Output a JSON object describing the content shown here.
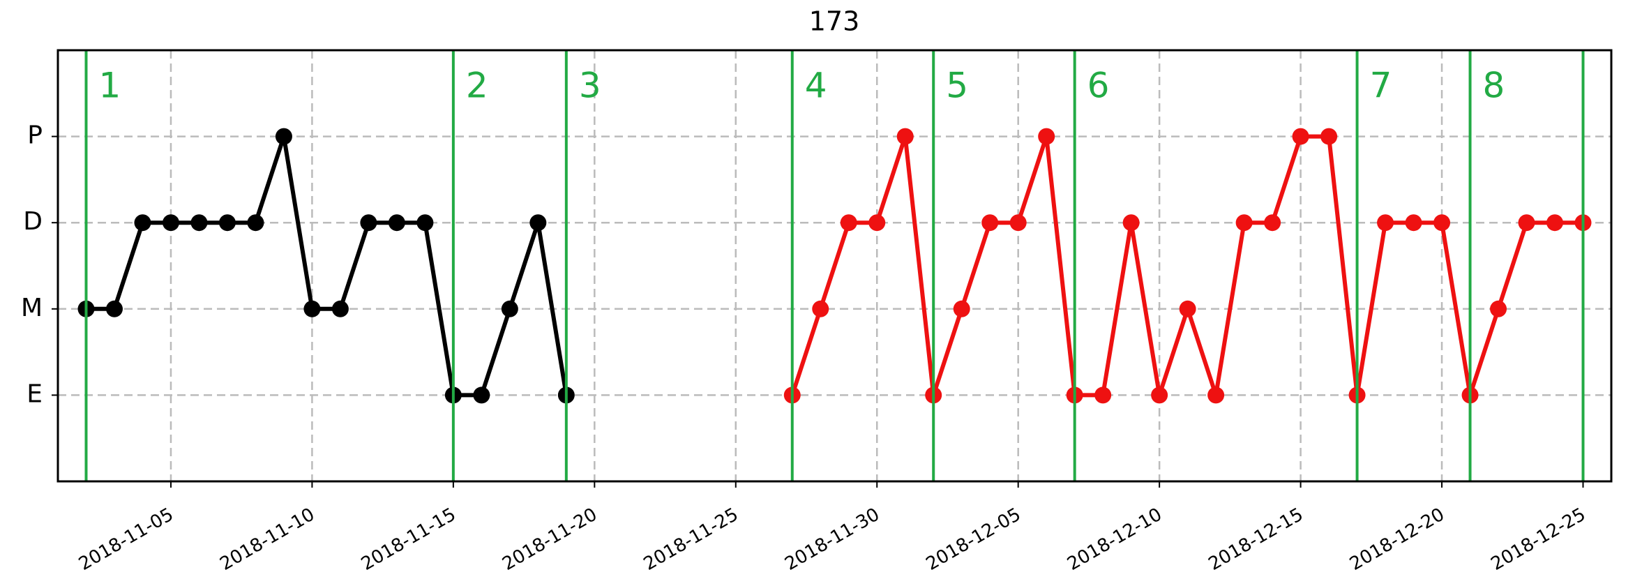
{
  "chart_data": {
    "type": "line",
    "title": "173",
    "xlim": [
      "2018-11-01",
      "2018-12-26"
    ],
    "xticks": [
      "2018-11-05",
      "2018-11-10",
      "2018-11-15",
      "2018-11-20",
      "2018-11-25",
      "2018-11-30",
      "2018-12-05",
      "2018-12-10",
      "2018-12-15",
      "2018-12-20",
      "2018-12-25"
    ],
    "ylim": [
      -1,
      4
    ],
    "yticks": [
      {
        "value": 0,
        "label": "E"
      },
      {
        "value": 1,
        "label": "M"
      },
      {
        "value": 2,
        "label": "D"
      },
      {
        "value": 3,
        "label": "P"
      }
    ],
    "grid": true,
    "series": [
      {
        "color": "#000000",
        "x": [
          "2018-11-02",
          "2018-11-03",
          "2018-11-04",
          "2018-11-05",
          "2018-11-06",
          "2018-11-07",
          "2018-11-08",
          "2018-11-09",
          "2018-11-10",
          "2018-11-11",
          "2018-11-12",
          "2018-11-13",
          "2018-11-14",
          "2018-11-15",
          "2018-11-16",
          "2018-11-17",
          "2018-11-18",
          "2018-11-19"
        ],
        "values": [
          1,
          1,
          2,
          2,
          2,
          2,
          2,
          3,
          1,
          1,
          2,
          2,
          2,
          0,
          0,
          1,
          2,
          0
        ]
      },
      {
        "color": "#ee1111",
        "x": [
          "2018-11-27",
          "2018-11-28",
          "2018-11-29",
          "2018-11-30",
          "2018-12-01",
          "2018-12-02",
          "2018-12-03",
          "2018-12-04",
          "2018-12-05",
          "2018-12-06",
          "2018-12-07",
          "2018-12-08",
          "2018-12-09",
          "2018-12-10",
          "2018-12-11",
          "2018-12-12",
          "2018-12-13",
          "2018-12-14",
          "2018-12-15",
          "2018-12-16",
          "2018-12-17",
          "2018-12-18",
          "2018-12-19",
          "2018-12-20",
          "2018-12-21",
          "2018-12-22",
          "2018-12-23",
          "2018-12-24",
          "2018-12-25"
        ],
        "values": [
          0,
          1,
          2,
          2,
          3,
          0,
          1,
          2,
          2,
          3,
          0,
          0,
          2,
          0,
          1,
          0,
          2,
          2,
          3,
          3,
          0,
          2,
          2,
          2,
          0,
          1,
          2,
          2,
          2
        ]
      }
    ],
    "vlines": {
      "color": "#22aa44",
      "lines": [
        {
          "x": "2018-11-02",
          "label": "1"
        },
        {
          "x": "2018-11-15",
          "label": "2"
        },
        {
          "x": "2018-11-19",
          "label": "3"
        },
        {
          "x": "2018-11-27",
          "label": "4"
        },
        {
          "x": "2018-12-02",
          "label": "5"
        },
        {
          "x": "2018-12-07",
          "label": "6"
        },
        {
          "x": "2018-12-17",
          "label": "7"
        },
        {
          "x": "2018-12-21",
          "label": "8"
        },
        {
          "x": "2018-12-25"
        }
      ]
    }
  }
}
